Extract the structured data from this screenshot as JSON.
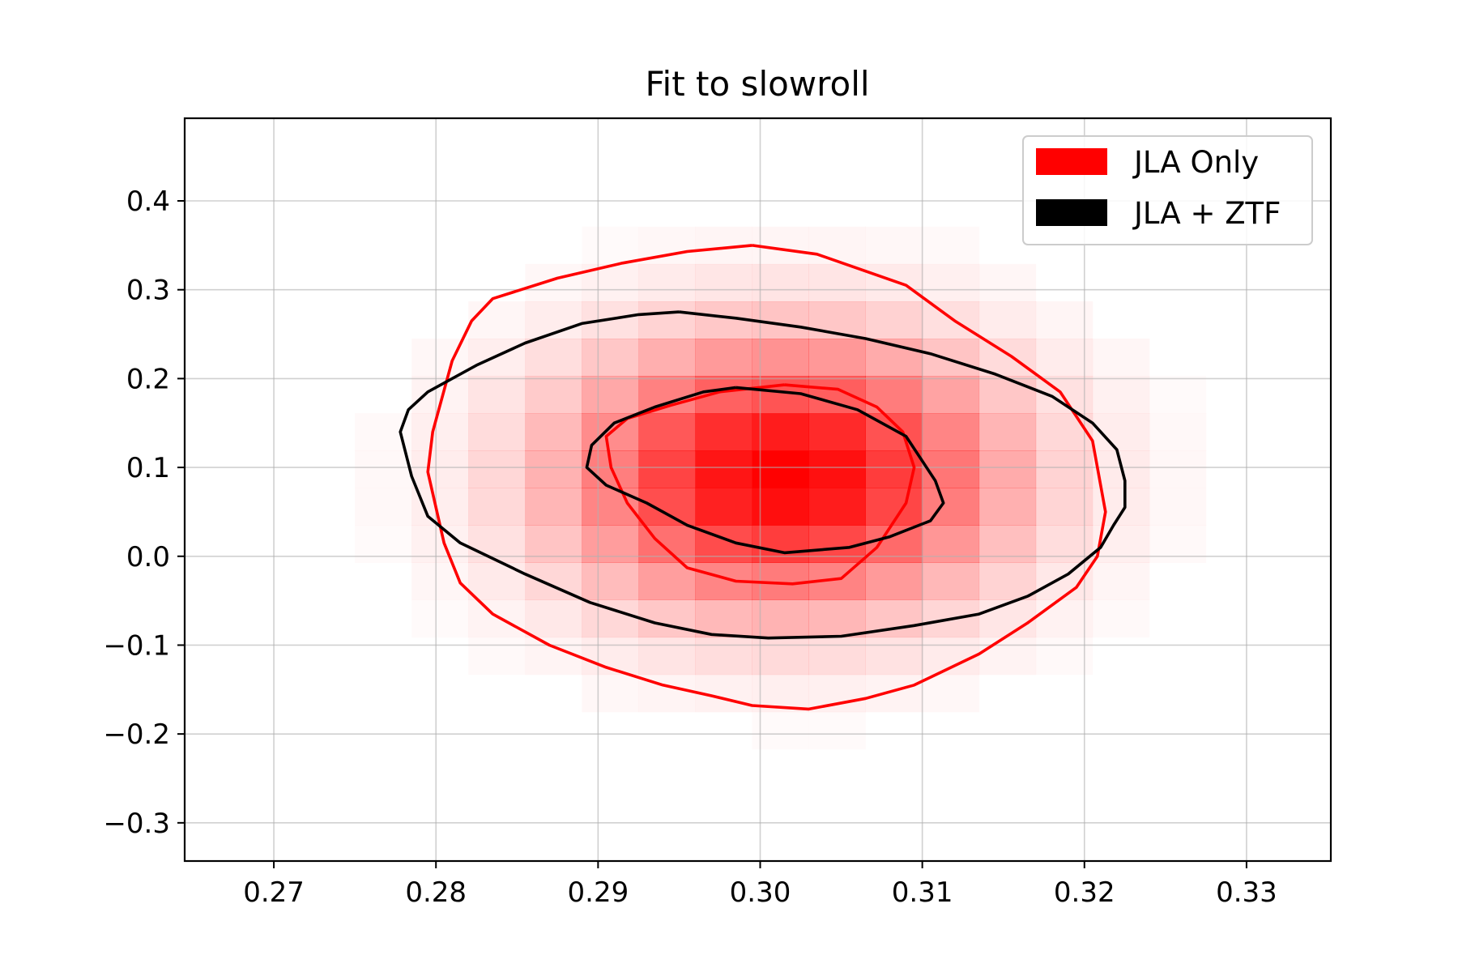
{
  "chart_data": {
    "type": "contour",
    "title": "Fit to slowroll",
    "xlabel": "",
    "ylabel": "",
    "xlim": [
      0.2645,
      0.3352
    ],
    "ylim": [
      -0.343,
      0.493
    ],
    "x_ticks": [
      0.27,
      0.28,
      0.29,
      0.3,
      0.31,
      0.32,
      0.33
    ],
    "x_tick_labels": [
      "0.27",
      "0.28",
      "0.29",
      "0.30",
      "0.31",
      "0.32",
      "0.33"
    ],
    "y_ticks": [
      0.4,
      0.3,
      0.2,
      0.1,
      0.0,
      -0.1,
      -0.2,
      -0.3
    ],
    "y_tick_labels": [
      "0.4",
      "0.3",
      "0.2",
      "0.1",
      "0.0",
      "−0.1",
      "−0.2",
      "−0.3"
    ],
    "grid": true,
    "legend_position": "top-right",
    "legend": [
      {
        "label": "JLA Only",
        "color": "#ff0000"
      },
      {
        "label": "JLA + ZTF",
        "color": "#000000"
      }
    ],
    "histogram": {
      "center": [
        0.3015,
        0.09
      ],
      "sigma": [
        0.0085,
        0.095
      ],
      "cell": [
        0.0035,
        0.042
      ]
    },
    "series": [
      {
        "name": "JLA Only",
        "color": "#ff0000",
        "contours": [
          [
            [
              0.2995,
              0.35
            ],
            [
              0.3035,
              0.34
            ],
            [
              0.309,
              0.305
            ],
            [
              0.312,
              0.265
            ],
            [
              0.3155,
              0.225
            ],
            [
              0.3185,
              0.185
            ],
            [
              0.3205,
              0.13
            ],
            [
              0.3213,
              0.05
            ],
            [
              0.3208,
              0.0
            ],
            [
              0.3195,
              -0.035
            ],
            [
              0.3165,
              -0.075
            ],
            [
              0.3135,
              -0.11
            ],
            [
              0.3095,
              -0.145
            ],
            [
              0.3065,
              -0.16
            ],
            [
              0.303,
              -0.172
            ],
            [
              0.2995,
              -0.168
            ],
            [
              0.297,
              -0.157
            ],
            [
              0.294,
              -0.145
            ],
            [
              0.2905,
              -0.125
            ],
            [
              0.287,
              -0.1
            ],
            [
              0.2835,
              -0.065
            ],
            [
              0.2815,
              -0.03
            ],
            [
              0.2805,
              0.015
            ],
            [
              0.2795,
              0.095
            ],
            [
              0.2798,
              0.14
            ],
            [
              0.281,
              0.22
            ],
            [
              0.2822,
              0.265
            ],
            [
              0.2835,
              0.29
            ],
            [
              0.2875,
              0.313
            ],
            [
              0.2915,
              0.33
            ],
            [
              0.2955,
              0.343
            ],
            [
              0.2995,
              0.35
            ]
          ],
          [
            [
              0.3015,
              0.193
            ],
            [
              0.3048,
              0.188
            ],
            [
              0.3072,
              0.168
            ],
            [
              0.3088,
              0.14
            ],
            [
              0.3095,
              0.1
            ],
            [
              0.309,
              0.06
            ],
            [
              0.3072,
              0.01
            ],
            [
              0.305,
              -0.025
            ],
            [
              0.302,
              -0.031
            ],
            [
              0.2985,
              -0.028
            ],
            [
              0.2955,
              -0.013
            ],
            [
              0.2935,
              0.02
            ],
            [
              0.2918,
              0.06
            ],
            [
              0.2908,
              0.1
            ],
            [
              0.2905,
              0.135
            ],
            [
              0.2918,
              0.155
            ],
            [
              0.2945,
              0.17
            ],
            [
              0.2975,
              0.185
            ],
            [
              0.3015,
              0.193
            ]
          ]
        ]
      },
      {
        "name": "JLA + ZTF",
        "color": "#000000",
        "contours": [
          [
            [
              0.295,
              0.275
            ],
            [
              0.2985,
              0.268
            ],
            [
              0.3025,
              0.258
            ],
            [
              0.3065,
              0.245
            ],
            [
              0.3105,
              0.228
            ],
            [
              0.3145,
              0.205
            ],
            [
              0.318,
              0.18
            ],
            [
              0.3205,
              0.15
            ],
            [
              0.322,
              0.12
            ],
            [
              0.3225,
              0.085
            ],
            [
              0.3225,
              0.055
            ],
            [
              0.3218,
              0.035
            ],
            [
              0.321,
              0.01
            ],
            [
              0.319,
              -0.02
            ],
            [
              0.3165,
              -0.045
            ],
            [
              0.3135,
              -0.065
            ],
            [
              0.3095,
              -0.078
            ],
            [
              0.305,
              -0.09
            ],
            [
              0.3005,
              -0.092
            ],
            [
              0.297,
              -0.088
            ],
            [
              0.2935,
              -0.075
            ],
            [
              0.2895,
              -0.052
            ],
            [
              0.2855,
              -0.02
            ],
            [
              0.2815,
              0.015
            ],
            [
              0.2795,
              0.045
            ],
            [
              0.2785,
              0.09
            ],
            [
              0.2778,
              0.14
            ],
            [
              0.2783,
              0.165
            ],
            [
              0.2795,
              0.185
            ],
            [
              0.2825,
              0.215
            ],
            [
              0.2855,
              0.24
            ],
            [
              0.289,
              0.262
            ],
            [
              0.2925,
              0.272
            ],
            [
              0.295,
              0.275
            ]
          ],
          [
            [
              0.2985,
              0.19
            ],
            [
              0.3025,
              0.183
            ],
            [
              0.306,
              0.165
            ],
            [
              0.309,
              0.135
            ],
            [
              0.3108,
              0.085
            ],
            [
              0.3113,
              0.06
            ],
            [
              0.3105,
              0.04
            ],
            [
              0.308,
              0.022
            ],
            [
              0.3055,
              0.01
            ],
            [
              0.3015,
              0.004
            ],
            [
              0.2985,
              0.015
            ],
            [
              0.2955,
              0.035
            ],
            [
              0.293,
              0.06
            ],
            [
              0.2905,
              0.08
            ],
            [
              0.2893,
              0.1
            ],
            [
              0.2896,
              0.125
            ],
            [
              0.291,
              0.15
            ],
            [
              0.2935,
              0.168
            ],
            [
              0.2965,
              0.185
            ],
            [
              0.2985,
              0.19
            ]
          ]
        ]
      }
    ]
  }
}
